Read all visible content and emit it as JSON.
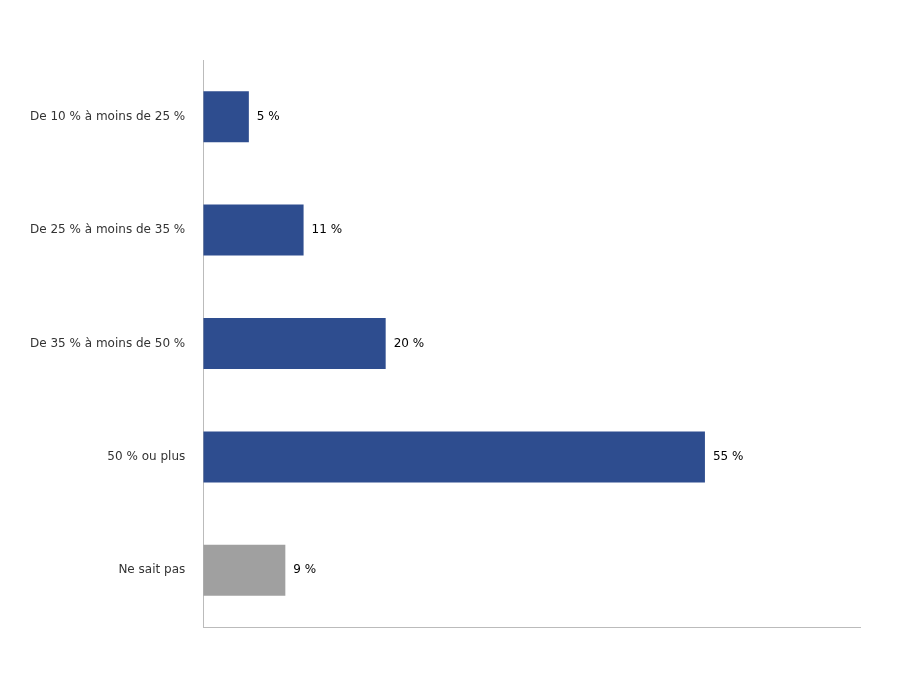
{
  "chart_data": {
    "type": "bar",
    "orientation": "horizontal",
    "categories": [
      "De 10 % à moins de 25 %",
      "De 25 % à moins de 35 %",
      "De 35 % à moins de 50 %",
      "50 % ou plus",
      "Ne sait pas"
    ],
    "values": [
      5,
      11,
      20,
      55,
      9
    ],
    "value_labels": [
      "5 %",
      "11 %",
      "20 %",
      "55 %",
      "9 %"
    ],
    "colors": [
      "#2E4D8F",
      "#2E4D8F",
      "#2E4D8F",
      "#2E4D8F",
      "#A0A0A0"
    ],
    "xlim": [
      0,
      72
    ],
    "grid": false,
    "data_labels": true,
    "tick_labels": "y"
  }
}
